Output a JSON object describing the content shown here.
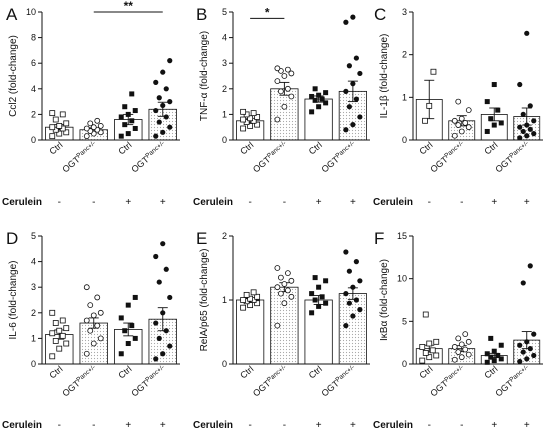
{
  "figure": {
    "treatment_label": "Cerulein",
    "palette": {
      "axis": "#111111",
      "hatch": "#b0b0b0",
      "bar_fill": "#ffffff"
    }
  },
  "chart_data": [
    {
      "panel": "A",
      "type": "bar",
      "ylabel": "Ccl2 (fold-change)",
      "ylim": [
        0,
        10
      ],
      "yticks": [
        0,
        2,
        4,
        6,
        8,
        10
      ],
      "groups": [
        {
          "label": "Ctrl",
          "genotype": "ctrl",
          "cerulein": "-",
          "mean": 1.0,
          "sem": 0.2,
          "points": [
            0.3,
            0.5,
            0.6,
            0.8,
            0.9,
            1.0,
            1.1,
            1.3,
            1.6,
            2.0,
            2.1
          ]
        },
        {
          "label": "OGT",
          "sup": "Panc+/-",
          "genotype": "ogt",
          "cerulein": "-",
          "mean": 0.8,
          "sem": 0.15,
          "points": [
            0.3,
            0.5,
            0.6,
            0.7,
            0.8,
            0.9,
            1.0,
            1.1,
            1.3,
            1.5
          ]
        },
        {
          "label": "Ctrl",
          "genotype": "ctrl",
          "cerulein": "+",
          "mean": 1.6,
          "sem": 0.4,
          "points": [
            0.3,
            0.5,
            0.9,
            1.2,
            1.5,
            1.8,
            2.0,
            2.3,
            2.6,
            3.6
          ]
        },
        {
          "label": "OGT",
          "sup": "Panc+/-",
          "genotype": "ogt",
          "cerulein": "+",
          "mean": 2.4,
          "sem": 0.55,
          "points": [
            0.3,
            0.6,
            1.0,
            1.4,
            1.8,
            2.3,
            2.7,
            3.0,
            3.3,
            4.0,
            4.5,
            5.3,
            6.2
          ]
        }
      ],
      "significance": [
        {
          "from": 1,
          "to": 3,
          "label": "**",
          "y": 10.0
        }
      ]
    },
    {
      "panel": "B",
      "type": "bar",
      "ylabel": "TNF-α (fold-change)",
      "ylim": [
        0,
        5
      ],
      "yticks": [
        0,
        1,
        2,
        3,
        4,
        5
      ],
      "groups": [
        {
          "label": "Ctrl",
          "genotype": "ctrl",
          "cerulein": "-",
          "mean": 0.75,
          "sem": 0.08,
          "points": [
            0.45,
            0.55,
            0.6,
            0.7,
            0.75,
            0.8,
            0.85,
            0.9,
            1.0,
            1.05,
            1.1
          ]
        },
        {
          "label": "OGT",
          "sup": "Panc+/-",
          "genotype": "ogt",
          "cerulein": "-",
          "mean": 2.0,
          "sem": 0.25,
          "points": [
            0.8,
            1.3,
            1.7,
            1.9,
            2.0,
            2.3,
            2.5,
            2.6,
            2.7,
            2.75,
            2.8
          ]
        },
        {
          "label": "Ctrl",
          "genotype": "ctrl",
          "cerulein": "+",
          "mean": 1.6,
          "sem": 0.12,
          "points": [
            1.1,
            1.3,
            1.45,
            1.55,
            1.6,
            1.7,
            1.75,
            1.85,
            2.0
          ]
        },
        {
          "label": "OGT",
          "sup": "Panc+/-",
          "genotype": "ogt",
          "cerulein": "+",
          "mean": 1.9,
          "sem": 0.4,
          "points": [
            0.4,
            0.6,
            0.9,
            1.3,
            1.6,
            1.9,
            2.2,
            2.6,
            2.9,
            3.2,
            4.6,
            4.8
          ]
        }
      ],
      "significance": [
        {
          "from": 0,
          "to": 1,
          "label": "*",
          "y": 4.75
        }
      ]
    },
    {
      "panel": "C",
      "type": "bar",
      "ylabel": "IL-1β (fold-change)",
      "ylim": [
        0,
        3
      ],
      "yticks": [
        0,
        1,
        2,
        3
      ],
      "groups": [
        {
          "label": "Ctrl",
          "genotype": "ctrl",
          "cerulein": "-",
          "mean": 0.95,
          "sem": 0.45,
          "points": [
            0.45,
            0.8,
            1.6
          ]
        },
        {
          "label": "OGT",
          "sup": "Panc+/-",
          "genotype": "ogt",
          "cerulein": "-",
          "mean": 0.45,
          "sem": 0.12,
          "points": [
            0.1,
            0.2,
            0.3,
            0.35,
            0.4,
            0.45,
            0.5,
            0.7,
            0.9
          ]
        },
        {
          "label": "Ctrl",
          "genotype": "ctrl",
          "cerulein": "+",
          "mean": 0.6,
          "sem": 0.15,
          "points": [
            0.2,
            0.35,
            0.4,
            0.5,
            0.7,
            0.9,
            1.3
          ]
        },
        {
          "label": "OGT",
          "sup": "Panc+/-",
          "genotype": "ogt",
          "cerulein": "+",
          "mean": 0.55,
          "sem": 0.2,
          "points": [
            0.05,
            0.1,
            0.15,
            0.2,
            0.25,
            0.3,
            0.35,
            0.45,
            0.6,
            0.8,
            1.3,
            2.5
          ]
        }
      ],
      "significance": []
    },
    {
      "panel": "D",
      "type": "bar",
      "ylabel": "IL-6 (fold-change)",
      "ylim": [
        0,
        5
      ],
      "yticks": [
        0,
        1,
        2,
        3,
        4,
        5
      ],
      "groups": [
        {
          "label": "Ctrl",
          "genotype": "ctrl",
          "cerulein": "-",
          "mean": 1.15,
          "sem": 0.18,
          "points": [
            0.3,
            0.6,
            0.8,
            0.9,
            1.1,
            1.2,
            1.3,
            1.4,
            1.6,
            1.7,
            2.0
          ]
        },
        {
          "label": "OGT",
          "sup": "Panc+/-",
          "genotype": "ogt",
          "cerulein": "-",
          "mean": 1.6,
          "sem": 0.2,
          "points": [
            0.4,
            0.8,
            1.0,
            1.3,
            1.5,
            1.7,
            1.9,
            2.0,
            2.3,
            2.6,
            3.0
          ]
        },
        {
          "label": "Ctrl",
          "genotype": "ctrl",
          "cerulein": "+",
          "mean": 1.35,
          "sem": 0.25,
          "points": [
            0.4,
            0.8,
            1.0,
            1.3,
            1.5,
            1.8,
            2.3,
            2.6
          ]
        },
        {
          "label": "OGT",
          "sup": "Panc+/-",
          "genotype": "ogt",
          "cerulein": "+",
          "mean": 1.75,
          "sem": 0.45,
          "points": [
            0.2,
            0.4,
            0.7,
            1.0,
            1.3,
            1.6,
            2.0,
            2.6,
            3.2,
            3.7,
            4.2,
            4.7
          ]
        }
      ],
      "significance": []
    },
    {
      "panel": "E",
      "type": "bar",
      "ylabel": "RelA/p65 (fold-change)",
      "ylim": [
        0,
        2
      ],
      "yticks": [
        0,
        1,
        2
      ],
      "groups": [
        {
          "label": "Ctrl",
          "genotype": "ctrl",
          "cerulein": "-",
          "mean": 1.0,
          "sem": 0.03,
          "points": [
            0.88,
            0.92,
            0.95,
            0.98,
            1.0,
            1.0,
            1.02,
            1.05,
            1.08,
            1.12
          ]
        },
        {
          "label": "OGT",
          "sup": "Panc+/-",
          "genotype": "ogt",
          "cerulein": "-",
          "mean": 1.2,
          "sem": 0.07,
          "points": [
            0.6,
            0.95,
            1.05,
            1.1,
            1.15,
            1.2,
            1.25,
            1.3,
            1.35,
            1.42,
            1.5
          ]
        },
        {
          "label": "Ctrl",
          "genotype": "ctrl",
          "cerulein": "+",
          "mean": 1.0,
          "sem": 0.07,
          "points": [
            0.8,
            0.9,
            0.95,
            1.0,
            1.05,
            1.1,
            1.2,
            1.3,
            1.35
          ]
        },
        {
          "label": "OGT",
          "sup": "Panc+/-",
          "genotype": "ogt",
          "cerulein": "+",
          "mean": 1.1,
          "sem": 0.09,
          "points": [
            0.6,
            0.75,
            0.85,
            0.95,
            1.0,
            1.1,
            1.2,
            1.3,
            1.45,
            1.6,
            1.75
          ]
        }
      ],
      "significance": []
    },
    {
      "panel": "F",
      "type": "bar",
      "ylabel": "IκBα (fold-change)",
      "ylim": [
        0,
        15
      ],
      "yticks": [
        0,
        5,
        10,
        15
      ],
      "groups": [
        {
          "label": "Ctrl",
          "genotype": "ctrl",
          "cerulein": "-",
          "mean": 1.8,
          "sem": 0.4,
          "points": [
            0.4,
            0.8,
            1.0,
            1.3,
            1.6,
            2.0,
            2.4,
            2.6,
            5.8
          ]
        },
        {
          "label": "OGT",
          "sup": "Panc+/-",
          "genotype": "ogt",
          "cerulein": "-",
          "mean": 1.8,
          "sem": 0.35,
          "points": [
            0.5,
            0.8,
            1.1,
            1.4,
            1.7,
            2.0,
            2.3,
            2.6,
            3.0,
            3.5
          ]
        },
        {
          "label": "Ctrl",
          "genotype": "ctrl",
          "cerulein": "+",
          "mean": 1.0,
          "sem": 0.25,
          "points": [
            0.2,
            0.4,
            0.6,
            0.8,
            1.0,
            1.2,
            1.5,
            2.2,
            3.0
          ]
        },
        {
          "label": "OGT",
          "sup": "Panc+/-",
          "genotype": "ogt",
          "cerulein": "+",
          "mean": 2.8,
          "sem": 1.0,
          "points": [
            0.3,
            0.6,
            1.0,
            1.4,
            1.8,
            2.2,
            2.6,
            3.5,
            9.5,
            11.5
          ]
        }
      ],
      "significance": []
    }
  ]
}
